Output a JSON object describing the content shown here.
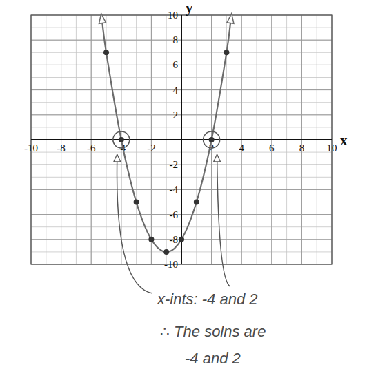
{
  "chart_data": {
    "type": "line",
    "x_label": "x",
    "y_label": "y",
    "xlim": [
      -10,
      10
    ],
    "ylim": [
      -10,
      10
    ],
    "xticks": [
      -10,
      -8,
      -6,
      -4,
      -2,
      2,
      4,
      6,
      8,
      10
    ],
    "yticks": [
      -10,
      -8,
      -6,
      -4,
      -2,
      2,
      4,
      6,
      8,
      10
    ],
    "grid": true,
    "series": [
      {
        "type": "line",
        "color": "#6b6b6b",
        "line_style": "solid",
        "marker": "arrow",
        "x": [
          -5.3,
          -5,
          -4,
          -3,
          -2,
          -1,
          0,
          1,
          2,
          3,
          3.3
        ],
        "values": [
          9.8,
          7,
          0,
          -5,
          -8,
          -9,
          -8,
          -5,
          0,
          7,
          9.8
        ]
      },
      {
        "type": "scatter",
        "color": "#333333",
        "marker": "circle",
        "x": [
          -5,
          -4,
          -3,
          -2,
          -1,
          0,
          1,
          2,
          3
        ],
        "values": [
          7,
          0,
          -5,
          -8,
          -9,
          -8,
          -5,
          0,
          7
        ]
      }
    ],
    "annotations": [
      "x-ints: -4 and 2",
      "∴ The solns are",
      "-4 and 2"
    ]
  }
}
